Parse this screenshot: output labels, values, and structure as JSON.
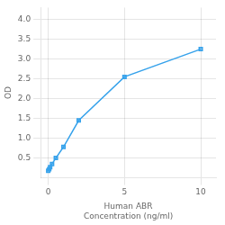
{
  "chart_data": {
    "type": "line",
    "x": [
      0,
      0.0625,
      0.125,
      0.25,
      0.5,
      1,
      2,
      5,
      10
    ],
    "values": [
      0.18,
      0.22,
      0.27,
      0.35,
      0.5,
      0.78,
      1.45,
      2.55,
      3.25
    ],
    "xlabel": "Human ABR\nConcentration (ng/ml)",
    "ylabel": "OD",
    "xlim": [
      -0.5,
      11
    ],
    "ylim": [
      0,
      4.3
    ],
    "xticks": [
      0,
      5,
      10
    ],
    "yticks": [
      0.5,
      {
        "value": 1.0,
        "label": "1.0"
      },
      1.5,
      {
        "value": 2.0,
        "label": "2.0"
      },
      2.5,
      {
        "value": 3.0,
        "label": "3.0"
      },
      3.5,
      {
        "value": 4.0,
        "label": "4.0"
      }
    ],
    "marker": "square",
    "line_style": "solid",
    "grid": true
  }
}
